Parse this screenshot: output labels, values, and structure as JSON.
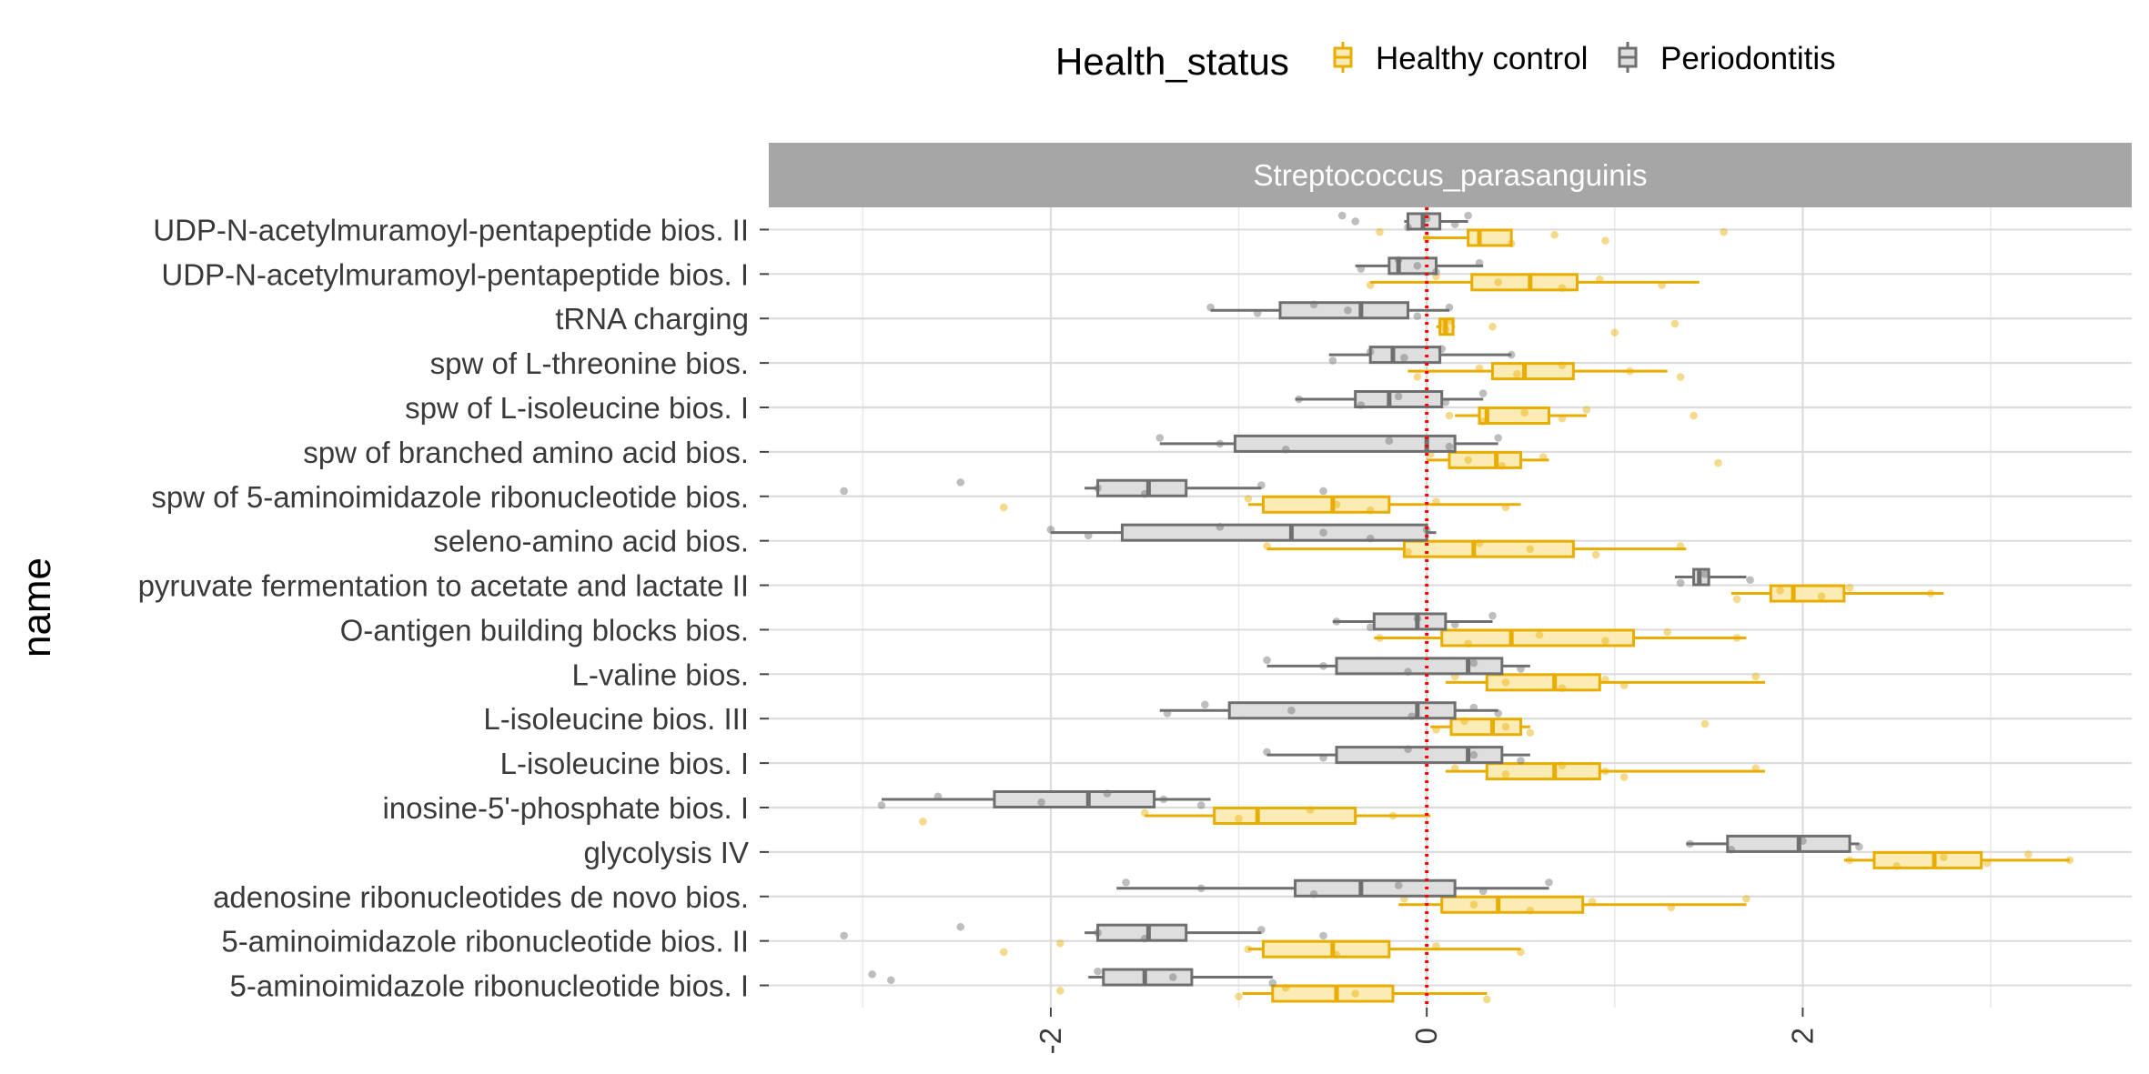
{
  "chart_data": {
    "type": "boxplot",
    "orientation": "horizontal",
    "facet_title": "Streptococcus_parasanguinis",
    "ylabel": "name",
    "xlabel": "",
    "xlim": [
      -3.5,
      3.75
    ],
    "xticks": [
      -2,
      0,
      2
    ],
    "xtick_labels": [
      "-2",
      "0",
      "2"
    ],
    "reference_line": {
      "x": 0,
      "color": "#ff0000",
      "style": "dotted"
    },
    "grid": true,
    "legend": {
      "title": "Health_status",
      "position": "top",
      "entries": [
        {
          "name": "Healthy control",
          "color": "#e8ad00",
          "fill": "#fbecb6"
        },
        {
          "name": "Periodontitis",
          "color": "#6f6f6f",
          "fill": "#dedede"
        }
      ]
    },
    "categories": [
      "UDP-N-acetylmuramoyl-pentapeptide bios. II",
      "UDP-N-acetylmuramoyl-pentapeptide bios. I",
      "tRNA charging",
      "spw of L-threonine bios.",
      "spw of L-isoleucine bios. I",
      "spw of branched amino acid bios.",
      "spw of 5-aminoimidazole ribonucleotide bios.",
      "seleno-amino acid bios.",
      "pyruvate fermentation to acetate and lactate II",
      "O-antigen building blocks bios.",
      "L-valine bios.",
      "L-isoleucine bios. III",
      "L-isoleucine bios. I",
      "inosine-5'-phosphate bios. I",
      "glycolysis IV",
      "adenosine ribonucleotides de novo bios.",
      "5-aminoimidazole ribonucleotide bios. II",
      "5-aminoimidazole ribonucleotide bios. I"
    ],
    "series": [
      {
        "name": "Healthy control",
        "boxes": [
          [
            -0.02,
            0.22,
            0.28,
            0.45,
            0.45
          ],
          [
            -0.3,
            0.24,
            0.55,
            0.8,
            1.45
          ],
          [
            0.05,
            0.07,
            0.1,
            0.14,
            0.15
          ],
          [
            -0.1,
            0.35,
            0.52,
            0.78,
            1.28
          ],
          [
            0.15,
            0.28,
            0.32,
            0.65,
            0.85
          ],
          [
            0.0,
            0.12,
            0.37,
            0.5,
            0.65
          ],
          [
            -0.95,
            -0.87,
            -0.5,
            -0.2,
            0.5
          ],
          [
            -0.85,
            -0.12,
            0.25,
            0.78,
            1.38
          ],
          [
            1.62,
            1.83,
            1.95,
            2.22,
            2.75
          ],
          [
            -0.28,
            0.08,
            0.45,
            1.1,
            1.7
          ],
          [
            0.1,
            0.32,
            0.68,
            0.92,
            1.8
          ],
          [
            0.02,
            0.13,
            0.35,
            0.5,
            0.55
          ],
          [
            0.1,
            0.32,
            0.68,
            0.92,
            1.8
          ],
          [
            -1.5,
            -1.13,
            -0.9,
            -0.38,
            0.02
          ],
          [
            2.22,
            2.38,
            2.7,
            2.95,
            3.42
          ],
          [
            -0.15,
            0.08,
            0.38,
            0.83,
            1.7
          ],
          [
            -0.95,
            -0.87,
            -0.5,
            -0.2,
            0.5
          ],
          [
            -0.98,
            -0.82,
            -0.48,
            -0.18,
            0.32
          ]
        ],
        "points": [
          [
            -0.25,
            0.0,
            0.45,
            0.68,
            0.95,
            1.58
          ],
          [
            -0.3,
            0.05,
            0.38,
            0.72,
            0.92,
            1.25
          ],
          [
            0.08,
            0.1,
            0.13,
            0.35,
            1.0,
            1.32
          ],
          [
            -0.05,
            0.28,
            0.48,
            0.72,
            1.08,
            1.35
          ],
          [
            0.12,
            0.3,
            0.52,
            0.72,
            0.85,
            1.42
          ],
          [
            0.02,
            0.22,
            0.4,
            0.62,
            1.55
          ],
          [
            -2.25,
            -0.95,
            -0.48,
            -0.3,
            0.05,
            0.42
          ],
          [
            -0.85,
            -0.1,
            0.28,
            0.55,
            0.9,
            1.35
          ],
          [
            1.65,
            1.88,
            2.1,
            2.25,
            2.68
          ],
          [
            -0.25,
            0.22,
            0.6,
            0.95,
            1.28,
            1.65
          ],
          [
            0.15,
            0.42,
            0.72,
            0.95,
            1.05,
            1.75
          ],
          [
            0.05,
            0.2,
            0.42,
            0.55,
            1.48
          ],
          [
            0.15,
            0.42,
            0.72,
            0.95,
            1.05,
            1.75
          ],
          [
            -2.68,
            -1.5,
            -1.0,
            -0.62,
            -0.18
          ],
          [
            2.25,
            2.5,
            2.75,
            2.98,
            3.2,
            3.42
          ],
          [
            -0.12,
            0.25,
            0.55,
            0.88,
            1.3,
            1.7
          ],
          [
            -2.25,
            -1.95,
            -0.95,
            -0.48,
            0.05,
            0.5
          ],
          [
            -1.95,
            -1.0,
            -0.75,
            -0.38,
            0.32
          ]
        ]
      },
      {
        "name": "Periodontitis",
        "boxes": [
          [
            -0.12,
            -0.1,
            -0.02,
            0.07,
            0.22
          ],
          [
            -0.38,
            -0.2,
            -0.15,
            0.05,
            0.3
          ],
          [
            -1.15,
            -0.78,
            -0.35,
            -0.1,
            0.12
          ],
          [
            -0.52,
            -0.3,
            -0.18,
            0.07,
            0.45
          ],
          [
            -0.7,
            -0.38,
            -0.2,
            0.08,
            0.3
          ],
          [
            -1.42,
            -1.02,
            0.0,
            0.15,
            0.38
          ],
          [
            -1.82,
            -1.75,
            -1.48,
            -1.28,
            -0.88
          ],
          [
            -2.0,
            -1.62,
            -0.72,
            0.0,
            0.05
          ],
          [
            1.32,
            1.42,
            1.45,
            1.5,
            1.7
          ],
          [
            -0.5,
            -0.28,
            -0.05,
            0.1,
            0.35
          ],
          [
            -0.85,
            -0.48,
            0.22,
            0.4,
            0.55
          ],
          [
            -1.42,
            -1.05,
            -0.05,
            0.15,
            0.38
          ],
          [
            -0.85,
            -0.48,
            0.22,
            0.4,
            0.55
          ],
          [
            -2.9,
            -2.3,
            -1.8,
            -1.45,
            -1.15
          ],
          [
            1.38,
            1.6,
            1.98,
            2.25,
            2.3
          ],
          [
            -1.65,
            -0.7,
            -0.35,
            0.15,
            0.65
          ],
          [
            -1.82,
            -1.75,
            -1.48,
            -1.28,
            -0.88
          ],
          [
            -1.8,
            -1.72,
            -1.5,
            -1.25,
            -0.82
          ]
        ],
        "points": [
          [
            -0.45,
            -0.38,
            -0.1,
            0.0,
            0.15,
            0.22
          ],
          [
            -0.35,
            -0.15,
            -0.05,
            0.05,
            0.28
          ],
          [
            -1.15,
            -0.9,
            -0.6,
            -0.42,
            -0.05,
            0.12
          ],
          [
            -0.5,
            -0.3,
            -0.12,
            0.08,
            0.45
          ],
          [
            -0.68,
            -0.35,
            -0.15,
            0.1,
            0.3
          ],
          [
            -1.42,
            -1.1,
            -0.75,
            -0.2,
            0.12,
            0.38
          ],
          [
            -3.1,
            -2.48,
            -1.75,
            -1.5,
            -0.88,
            -0.55
          ],
          [
            -2.0,
            -1.8,
            -1.1,
            -0.55,
            -0.3,
            0.0
          ],
          [
            1.35,
            1.48,
            1.72
          ],
          [
            -0.48,
            -0.3,
            -0.05,
            0.15,
            0.35
          ],
          [
            -0.85,
            -0.55,
            -0.1,
            0.25,
            0.5
          ],
          [
            -1.38,
            -1.18,
            -0.72,
            -0.08,
            0.25,
            0.38
          ],
          [
            -0.85,
            -0.55,
            -0.1,
            0.25,
            0.5
          ],
          [
            -2.9,
            -2.6,
            -2.05,
            -1.7,
            -1.4,
            -1.2
          ],
          [
            1.4,
            1.62,
            2.0,
            2.3
          ],
          [
            -1.6,
            -1.2,
            -0.6,
            -0.15,
            0.3,
            0.65
          ],
          [
            -3.1,
            -2.48,
            -1.75,
            -1.5,
            -0.88,
            -0.55
          ],
          [
            -2.95,
            -2.85,
            -1.75,
            -1.35,
            -0.82
          ]
        ]
      }
    ]
  }
}
